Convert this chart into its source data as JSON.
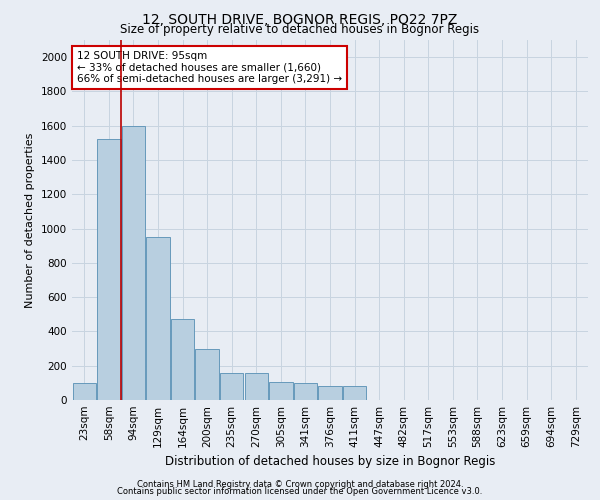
{
  "title": "12, SOUTH DRIVE, BOGNOR REGIS, PO22 7PZ",
  "subtitle": "Size of property relative to detached houses in Bognor Regis",
  "xlabel": "Distribution of detached houses by size in Bognor Regis",
  "ylabel": "Number of detached properties",
  "footer1": "Contains HM Land Registry data © Crown copyright and database right 2024.",
  "footer2": "Contains public sector information licensed under the Open Government Licence v3.0.",
  "annotation_title": "12 SOUTH DRIVE: 95sqm",
  "annotation_line1": "← 33% of detached houses are smaller (1,660)",
  "annotation_line2": "66% of semi-detached houses are larger (3,291) →",
  "bar_color": "#b8cfe0",
  "bar_edge_color": "#6699bb",
  "vline_color": "#bb0000",
  "vline_x": 1.5,
  "categories": [
    "23sqm",
    "58sqm",
    "94sqm",
    "129sqm",
    "164sqm",
    "200sqm",
    "235sqm",
    "270sqm",
    "305sqm",
    "341sqm",
    "376sqm",
    "411sqm",
    "447sqm",
    "482sqm",
    "517sqm",
    "553sqm",
    "588sqm",
    "623sqm",
    "659sqm",
    "694sqm",
    "729sqm"
  ],
  "values": [
    100,
    1520,
    1600,
    950,
    470,
    300,
    160,
    160,
    105,
    100,
    80,
    80,
    0,
    0,
    0,
    0,
    0,
    0,
    0,
    0,
    0
  ],
  "ylim": [
    0,
    2100
  ],
  "yticks": [
    0,
    200,
    400,
    600,
    800,
    1000,
    1200,
    1400,
    1600,
    1800,
    2000
  ],
  "bg_color": "#e8edf4",
  "plot_bg_color": "#e8edf4",
  "grid_color": "#c8d4e0",
  "annotation_box_facecolor": "#ffffff",
  "annotation_box_edge_color": "#cc0000",
  "title_fontsize": 10,
  "subtitle_fontsize": 8.5,
  "ylabel_fontsize": 8,
  "xlabel_fontsize": 8.5,
  "tick_fontsize": 7.5,
  "ann_fontsize": 7.5,
  "footer_fontsize": 6
}
